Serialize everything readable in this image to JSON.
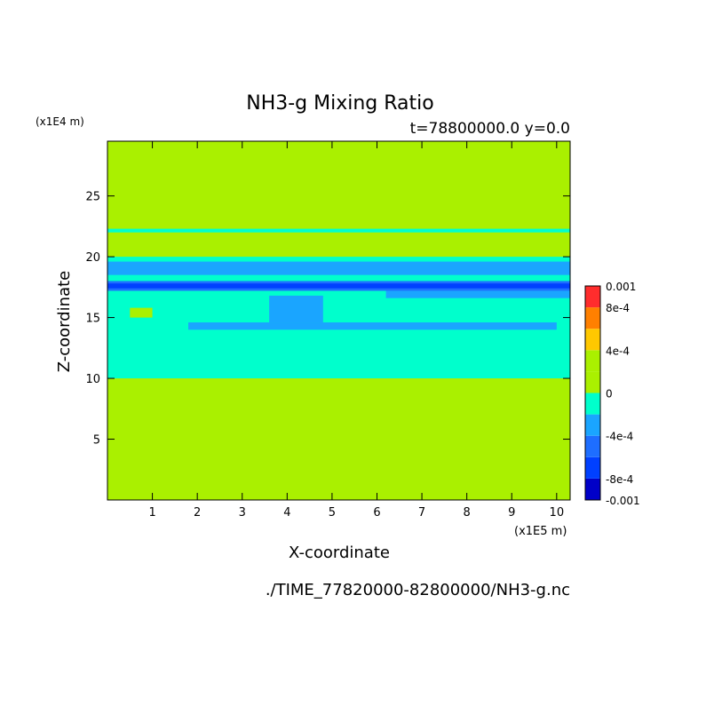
{
  "chart_data": {
    "type": "heatmap",
    "title": "NH3-g Mixing Ratio",
    "subtitle": "t=78800000.0 y=0.0",
    "xlabel": "X-coordinate",
    "ylabel": "Z-coordinate",
    "x_unit": "(x1E5 m)",
    "z_unit": "(x1E4 m)",
    "footer": "./TIME_77820000-82800000/NH3-g.nc",
    "xlim": [
      0,
      10.3
    ],
    "ylim": [
      0,
      29.5
    ],
    "x_ticks": [
      1,
      2,
      3,
      4,
      5,
      6,
      7,
      8,
      9,
      10
    ],
    "y_ticks": [
      5,
      10,
      15,
      20,
      25
    ],
    "colorbar": {
      "range": [
        -0.001,
        0.001
      ],
      "levels": [
        {
          "from": -0.001,
          "to": -0.0008,
          "color": "#0000c8"
        },
        {
          "from": -0.0008,
          "to": -0.0006,
          "color": "#0040ff"
        },
        {
          "from": -0.0006,
          "to": -0.0004,
          "color": "#1e6eff"
        },
        {
          "from": -0.0004,
          "to": -0.0002,
          "color": "#1aa5ff"
        },
        {
          "from": -0.0002,
          "to": 0,
          "color": "#00ffcc"
        },
        {
          "from": 0,
          "to": 0.0002,
          "color": "#aaf000"
        },
        {
          "from": 0.0002,
          "to": 0.0004,
          "color": "#aaf000"
        },
        {
          "from": 0.0004,
          "to": 0.0006,
          "color": "#ffc800"
        },
        {
          "from": 0.0006,
          "to": 0.0008,
          "color": "#ff8000"
        },
        {
          "from": 0.0008,
          "to": 0.001,
          "color": "#ff2d2d"
        }
      ],
      "labels": [
        {
          "value": 0.001,
          "text": "0.001"
        },
        {
          "value": 0.0008,
          "text": "8e-4"
        },
        {
          "value": 0.0004,
          "text": "4e-4"
        },
        {
          "value": 0,
          "text": "0"
        },
        {
          "value": -0.0004,
          "text": "-4e-4"
        },
        {
          "value": -0.0008,
          "text": "-8e-4"
        },
        {
          "value": -0.001,
          "text": "-0.001"
        }
      ]
    },
    "background_color": "#aaf000",
    "bands": [
      {
        "z0": 22.0,
        "z1": 22.3,
        "x0": 0,
        "x1": 10.3,
        "level": "#00ffcc"
      },
      {
        "z0": 10.0,
        "z1": 20.0,
        "x0": 0,
        "x1": 10.3,
        "level": "#00ffcc"
      },
      {
        "z0": 17.2,
        "z1": 18.0,
        "x0": 0,
        "x1": 10.3,
        "level": "#1e6eff"
      },
      {
        "z0": 17.4,
        "z1": 17.8,
        "x0": 0,
        "x1": 10.3,
        "level": "#0040ff"
      },
      {
        "z0": 16.6,
        "z1": 17.2,
        "x0": 6.2,
        "x1": 10.3,
        "level": "#1aa5ff"
      },
      {
        "z0": 14.0,
        "z1": 14.6,
        "x0": 1.8,
        "x1": 10.0,
        "level": "#1aa5ff"
      },
      {
        "z0": 14.6,
        "z1": 16.8,
        "x0": 3.6,
        "x1": 4.8,
        "level": "#1aa5ff"
      },
      {
        "z0": 15.0,
        "z1": 15.8,
        "x0": 0.5,
        "x1": 1.0,
        "level": "#aaf000"
      },
      {
        "z0": 18.5,
        "z1": 19.6,
        "x0": 0,
        "x1": 10.3,
        "level": "#1aa5ff"
      }
    ]
  }
}
